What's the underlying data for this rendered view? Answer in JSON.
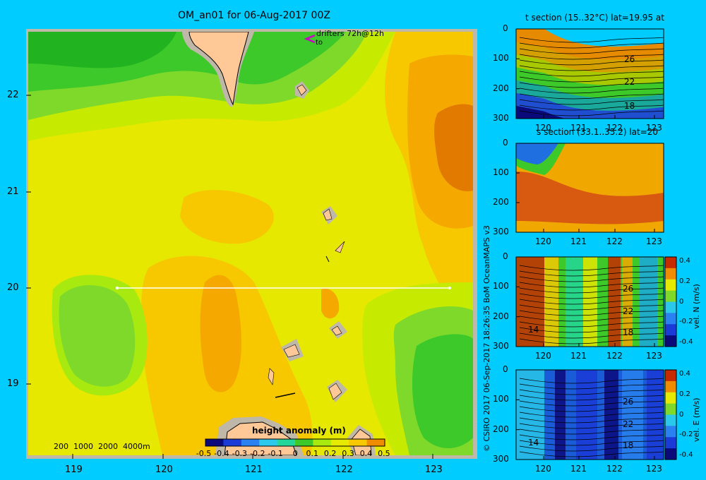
{
  "main_map": {
    "title": "OM_an01 for 06-Aug-2017 00Z",
    "y_ticks": [
      "22",
      "21",
      "20",
      "19"
    ],
    "x_ticks": [
      "119",
      "120",
      "121",
      "122",
      "123"
    ],
    "drifters_label": "drifters 72h@12h",
    "drifters_to": "to",
    "depth_legend": "200  1000  2000  4000m",
    "section_line": {
      "lat": 20,
      "lon_start": 119.5,
      "lon_end": 123.2
    },
    "colorbar": {
      "title": "height anomaly (m)",
      "labels": [
        "-0.5",
        "-0.4",
        "-0.3",
        "-0.2",
        "-0.1",
        "0",
        "0.1",
        "0.2",
        "0.3",
        "0.4",
        "0.5"
      ],
      "colors": [
        "#0a0a7a",
        "#1b3bd6",
        "#2a82f0",
        "#2ac8ea",
        "#23d79a",
        "#3ec92a",
        "#a8ea10",
        "#e6ea00",
        "#f7c800",
        "#f08c00",
        "#c82a00"
      ]
    }
  },
  "credit": "© CSIRO 2017   06-Sep-2017 18:26:35 BoM OceanMAPS v3",
  "panels": [
    {
      "title": "t section (15..32°C) lat=19.95 at",
      "y_ticks": [
        "0",
        "100",
        "200",
        "300"
      ],
      "x_ticks": [
        "120",
        "121",
        "122",
        "123"
      ],
      "contour_labels": [
        "26",
        "22",
        "18"
      ],
      "colorbar": null
    },
    {
      "title": "s section (33.1..35.2) lat=20",
      "y_ticks": [
        "0",
        "100",
        "200",
        "300"
      ],
      "x_ticks": [
        "120",
        "121",
        "122",
        "123"
      ],
      "contour_labels": [],
      "colorbar": null
    },
    {
      "title": "",
      "y_ticks": [
        "0",
        "100",
        "200",
        "300"
      ],
      "x_ticks": [
        "120",
        "121",
        "122",
        "123"
      ],
      "contour_labels": [
        "26",
        "22",
        "18",
        "14"
      ],
      "colorbar": {
        "label": "vel. N (m/s)",
        "ticks": [
          "0.4",
          "0.2",
          "0",
          "-0.2",
          "-0.4"
        ]
      }
    },
    {
      "title": "",
      "y_ticks": [
        "0",
        "100",
        "200",
        "300"
      ],
      "x_ticks": [
        "120",
        "121",
        "122",
        "123"
      ],
      "contour_labels": [
        "26",
        "22",
        "18",
        "14"
      ],
      "colorbar": {
        "label": "vel. E (m/s)",
        "ticks": [
          "0.4",
          "0.2",
          "0",
          "-0.2",
          "-0.4"
        ]
      }
    }
  ]
}
